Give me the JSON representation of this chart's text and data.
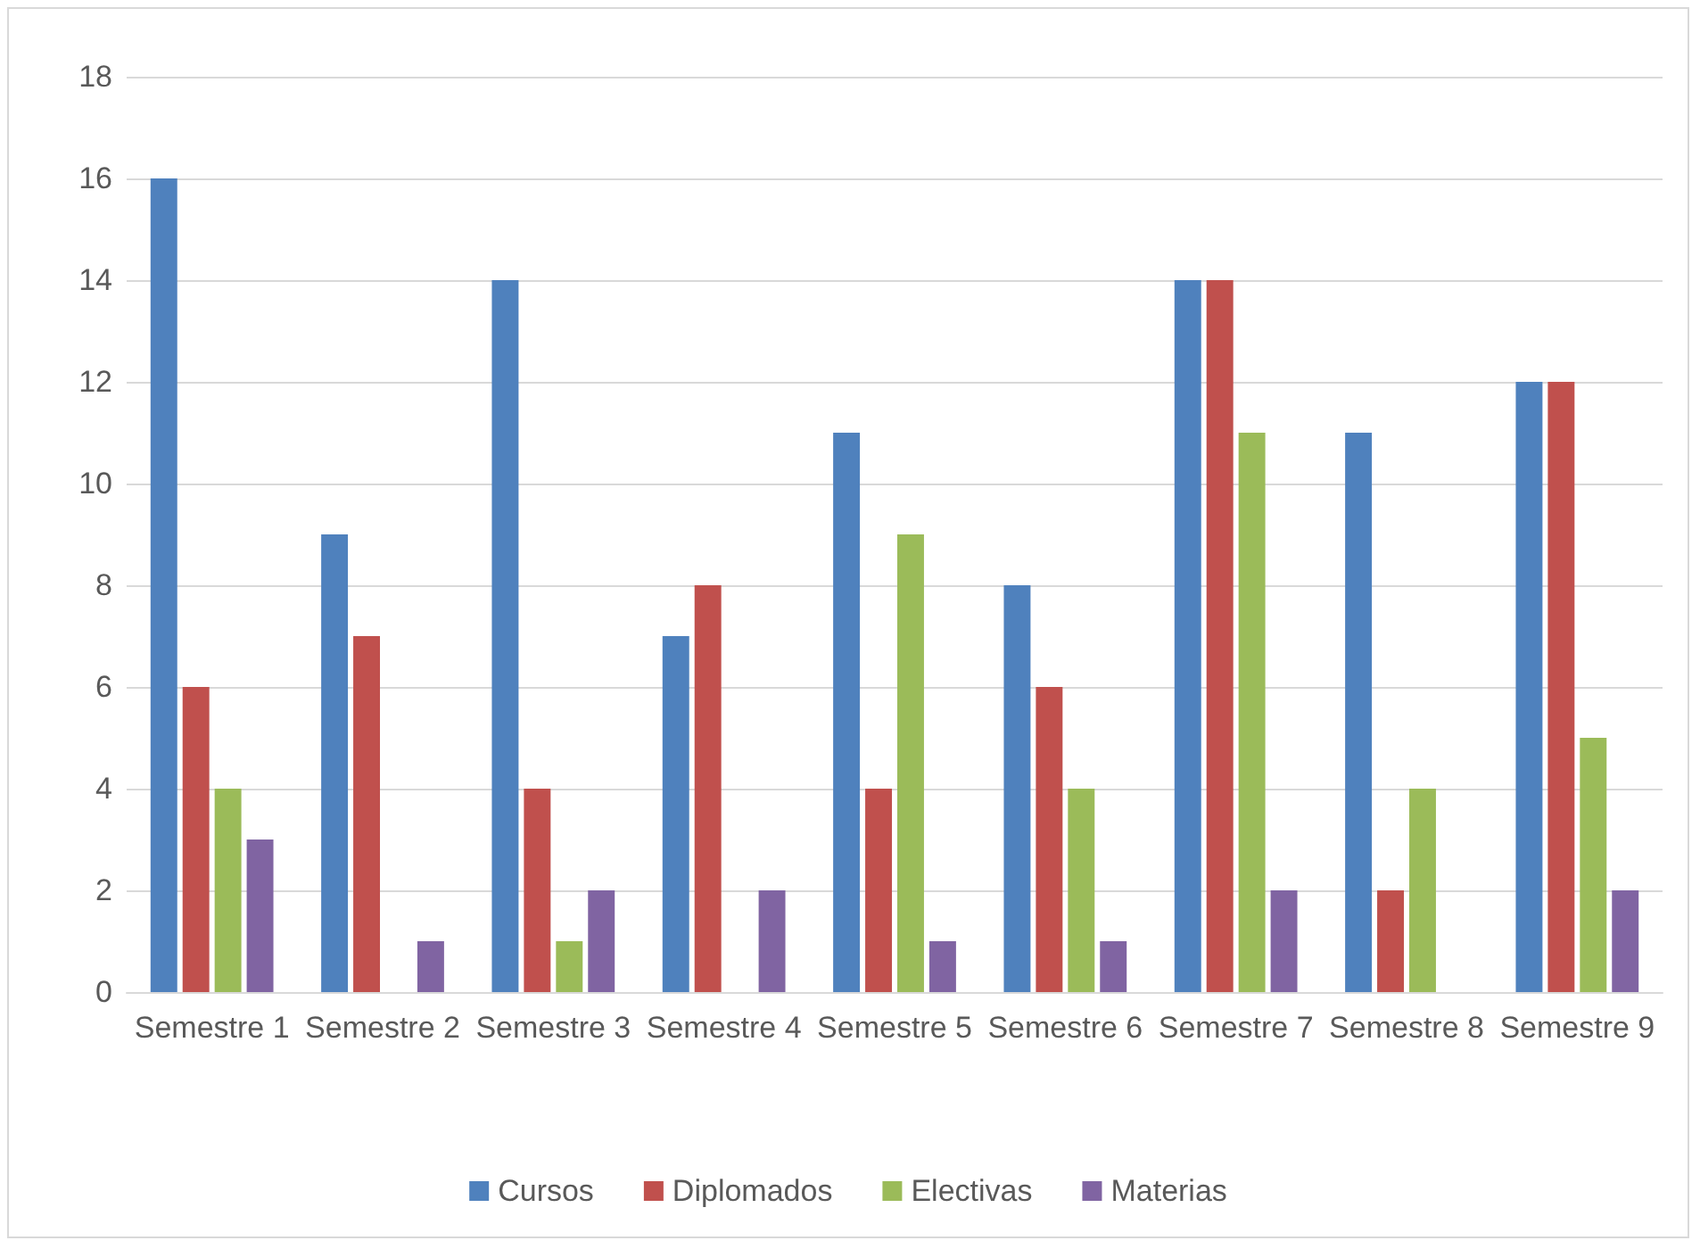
{
  "chart_data": {
    "type": "bar",
    "categories": [
      "Semestre 1",
      "Semestre 2",
      "Semestre 3",
      "Semestre 4",
      "Semestre 5",
      "Semestre 6",
      "Semestre 7",
      "Semestre 8",
      "Semestre 9"
    ],
    "series": [
      {
        "name": "Cursos",
        "color": "#4f81bd",
        "values": [
          16,
          9,
          14,
          7,
          11,
          8,
          14,
          11,
          12
        ]
      },
      {
        "name": "Diplomados",
        "color": "#c0504d",
        "values": [
          6,
          7,
          4,
          8,
          4,
          6,
          14,
          2,
          12
        ]
      },
      {
        "name": "Electivas",
        "color": "#9bbb59",
        "values": [
          4,
          null,
          1,
          null,
          9,
          4,
          11,
          4,
          5
        ]
      },
      {
        "name": "Materias",
        "color": "#8064a2",
        "values": [
          3,
          1,
          2,
          2,
          1,
          1,
          2,
          null,
          2
        ]
      }
    ],
    "ylim": [
      0,
      18
    ],
    "yticks": [
      0,
      2,
      4,
      6,
      8,
      10,
      12,
      14,
      16,
      18
    ],
    "grid": "y",
    "legend": "bottom"
  }
}
